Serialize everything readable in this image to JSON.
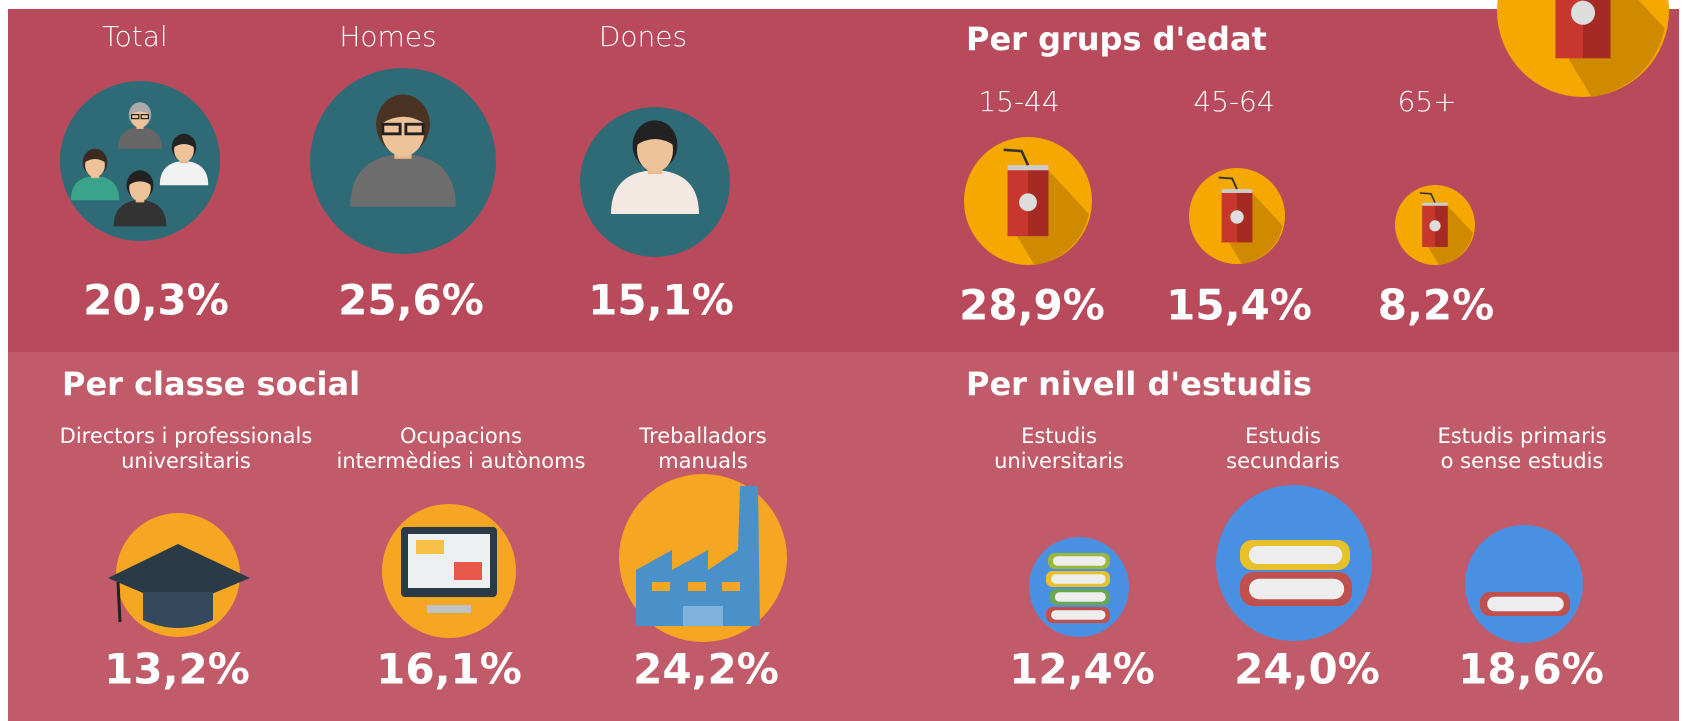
{
  "overall": {
    "items": [
      {
        "label": "Total",
        "value": "20,3%"
      },
      {
        "label": "Homes",
        "value": "25,6%"
      },
      {
        "label": "Dones",
        "value": "15,1%"
      }
    ]
  },
  "age": {
    "title": "Per grups d'edat",
    "items": [
      {
        "label": "15-44",
        "value": "28,9%"
      },
      {
        "label": "45-64",
        "value": "15,4%"
      },
      {
        "label": "65+",
        "value": "8,2%"
      }
    ]
  },
  "social_class": {
    "title": "Per classe social",
    "items": [
      {
        "label": [
          "Directors i professionals",
          "universitaris"
        ],
        "value": "13,2%"
      },
      {
        "label": [
          "Ocupacions",
          "intermèdies i autònoms"
        ],
        "value": "16,1%"
      },
      {
        "label": [
          "Treballadors",
          "manuals"
        ],
        "value": "24,2%"
      }
    ]
  },
  "education": {
    "title": "Per nivell d'estudis",
    "items": [
      {
        "label": [
          "Estudis",
          "universitaris"
        ],
        "value": "12,4%"
      },
      {
        "label": [
          "Estudis",
          "secundaris"
        ],
        "value": "24,0%"
      },
      {
        "label": [
          "Estudis primaris",
          "o sense estudis"
        ],
        "value": "18,6%"
      }
    ]
  }
}
